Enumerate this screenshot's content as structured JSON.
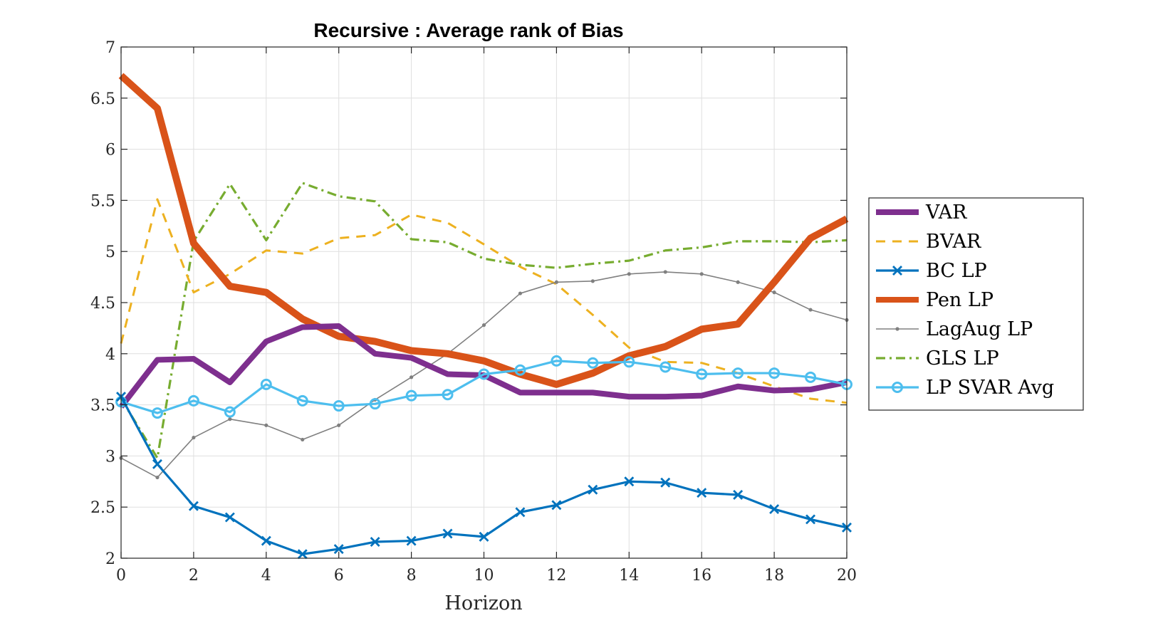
{
  "chart_data": {
    "type": "line",
    "title": "Recursive : Average rank of Bias",
    "xlabel": "Horizon",
    "ylabel": "",
    "xlim": [
      0,
      20
    ],
    "ylim": [
      2,
      7
    ],
    "xticks": [
      0,
      2,
      4,
      6,
      8,
      10,
      12,
      14,
      16,
      18,
      20
    ],
    "yticks": [
      2,
      2.5,
      3,
      3.5,
      4,
      4.5,
      5,
      5.5,
      6,
      6.5,
      7
    ],
    "grid": true,
    "legend_position": "outside-right",
    "x": [
      0,
      1,
      2,
      3,
      4,
      5,
      6,
      7,
      8,
      9,
      10,
      11,
      12,
      13,
      14,
      15,
      16,
      17,
      18,
      19,
      20
    ],
    "series": [
      {
        "name": "VAR",
        "color": "#7E2F8E",
        "style": "solid-thick",
        "values": [
          3.48,
          3.94,
          3.95,
          3.72,
          4.12,
          4.26,
          4.27,
          4.0,
          3.96,
          3.8,
          3.79,
          3.62,
          3.62,
          3.62,
          3.58,
          3.58,
          3.59,
          3.68,
          3.64,
          3.65,
          3.72
        ]
      },
      {
        "name": "BVAR",
        "color": "#EDB120",
        "style": "dashed",
        "values": [
          4.1,
          5.51,
          4.6,
          4.78,
          5.01,
          4.98,
          5.13,
          5.16,
          5.36,
          5.28,
          5.07,
          4.85,
          4.68,
          4.38,
          4.06,
          3.92,
          3.91,
          3.81,
          3.68,
          3.56,
          3.52
        ]
      },
      {
        "name": "BC LP",
        "color": "#0072BD",
        "style": "solid-x",
        "values": [
          3.58,
          2.92,
          2.51,
          2.4,
          2.17,
          2.04,
          2.09,
          2.16,
          2.17,
          2.24,
          2.21,
          2.45,
          2.52,
          2.67,
          2.75,
          2.74,
          2.64,
          2.62,
          2.48,
          2.38,
          2.3
        ]
      },
      {
        "name": "Pen LP",
        "color": "#D95319",
        "style": "solid-thicker",
        "values": [
          6.72,
          6.4,
          5.08,
          4.66,
          4.6,
          4.34,
          4.17,
          4.12,
          4.03,
          4.0,
          3.93,
          3.8,
          3.7,
          3.81,
          3.98,
          4.07,
          4.24,
          4.29,
          4.7,
          5.13,
          5.32
        ]
      },
      {
        "name": "LagAug LP",
        "color": "#808080",
        "style": "solid-dot",
        "values": [
          2.98,
          2.79,
          3.18,
          3.36,
          3.3,
          3.16,
          3.3,
          3.55,
          3.77,
          4.0,
          4.28,
          4.59,
          4.7,
          4.71,
          4.78,
          4.8,
          4.78,
          4.7,
          4.6,
          4.43,
          4.33
        ]
      },
      {
        "name": "GLS LP",
        "color": "#77AC30",
        "style": "dashdot",
        "values": [
          3.56,
          2.98,
          5.1,
          5.66,
          5.11,
          5.67,
          5.54,
          5.49,
          5.12,
          5.09,
          4.93,
          4.87,
          4.84,
          4.88,
          4.91,
          5.01,
          5.04,
          5.1,
          5.1,
          5.09,
          5.11
        ]
      },
      {
        "name": "LP SVAR Avg",
        "color": "#4DBEEE",
        "style": "solid-circle",
        "values": [
          3.53,
          3.42,
          3.54,
          3.43,
          3.7,
          3.54,
          3.49,
          3.51,
          3.59,
          3.6,
          3.8,
          3.84,
          3.93,
          3.91,
          3.92,
          3.87,
          3.8,
          3.81,
          3.81,
          3.77,
          3.7
        ]
      }
    ]
  }
}
